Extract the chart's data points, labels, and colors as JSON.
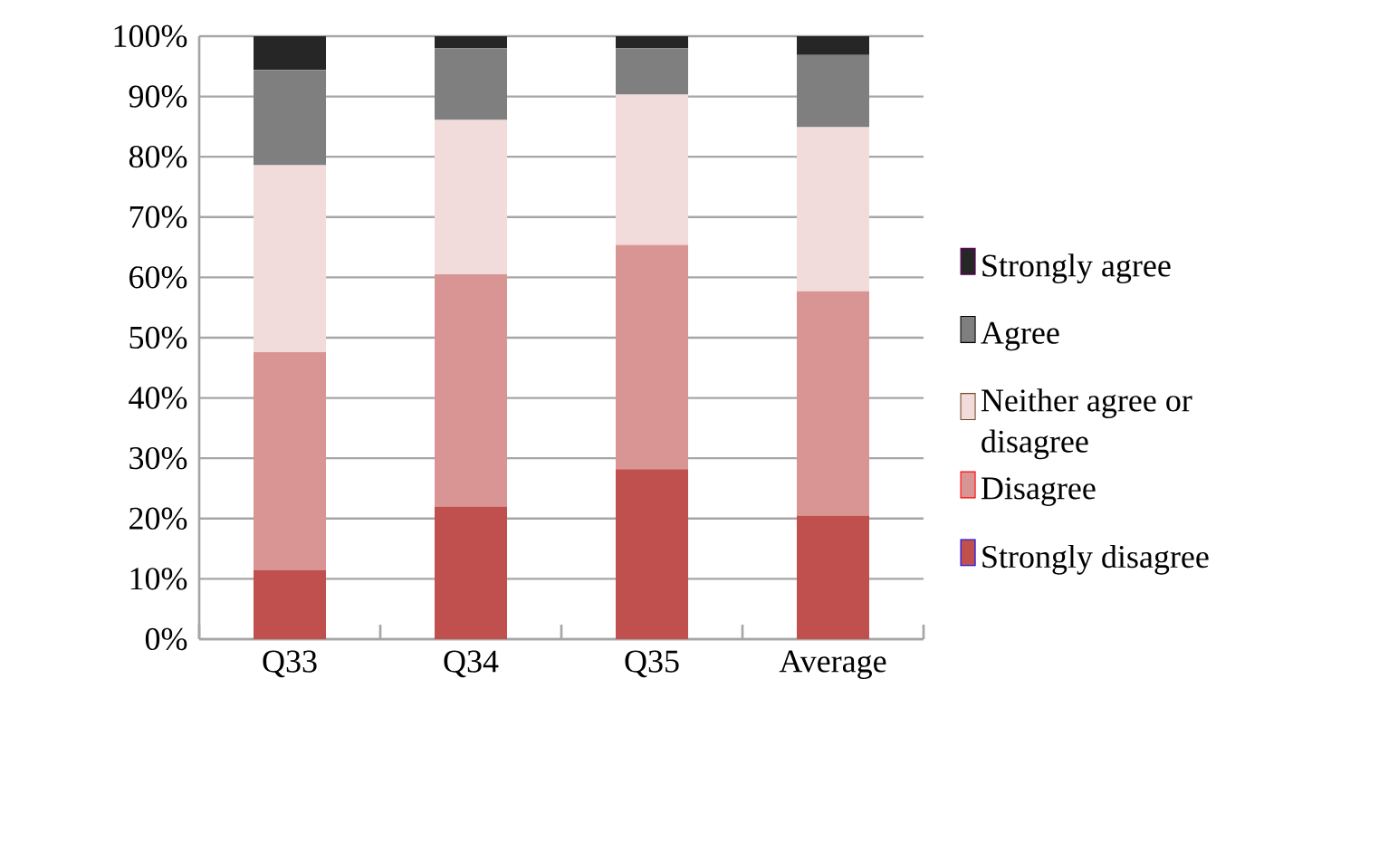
{
  "chart_data": {
    "type": "bar",
    "stacked": true,
    "categories": [
      "Q33",
      "Q34",
      "Q35",
      "Average"
    ],
    "series": [
      {
        "name": "Strongly disagree",
        "color": "#c0504d",
        "values": [
          11.5,
          22.0,
          28.2,
          20.5
        ]
      },
      {
        "name": "Disagree",
        "color": "#d99594",
        "values": [
          36.1,
          38.5,
          37.2,
          37.2
        ]
      },
      {
        "name": "Neither agree or disagree",
        "color": "#f2dbdb",
        "values": [
          31.0,
          25.6,
          24.9,
          27.2
        ]
      },
      {
        "name": "Agree",
        "color": "#7f7f7f",
        "values": [
          15.8,
          11.9,
          7.7,
          12.0
        ]
      },
      {
        "name": "Strongly agree",
        "color": "#262626",
        "values": [
          5.6,
          2.0,
          2.0,
          3.1
        ]
      }
    ],
    "ylim": [
      0,
      100
    ],
    "yticks": [
      {
        "value": 0,
        "label": "0%"
      },
      {
        "value": 10,
        "label": "10%"
      },
      {
        "value": 20,
        "label": "20%"
      },
      {
        "value": 30,
        "label": "30%"
      },
      {
        "value": 40,
        "label": "40%"
      },
      {
        "value": 50,
        "label": "50%"
      },
      {
        "value": 60,
        "label": "60%"
      },
      {
        "value": 70,
        "label": "70%"
      },
      {
        "value": 80,
        "label": "80%"
      },
      {
        "value": 90,
        "label": "90%"
      },
      {
        "value": 100,
        "label": "100%"
      }
    ],
    "grid": "y",
    "legend": "right"
  }
}
